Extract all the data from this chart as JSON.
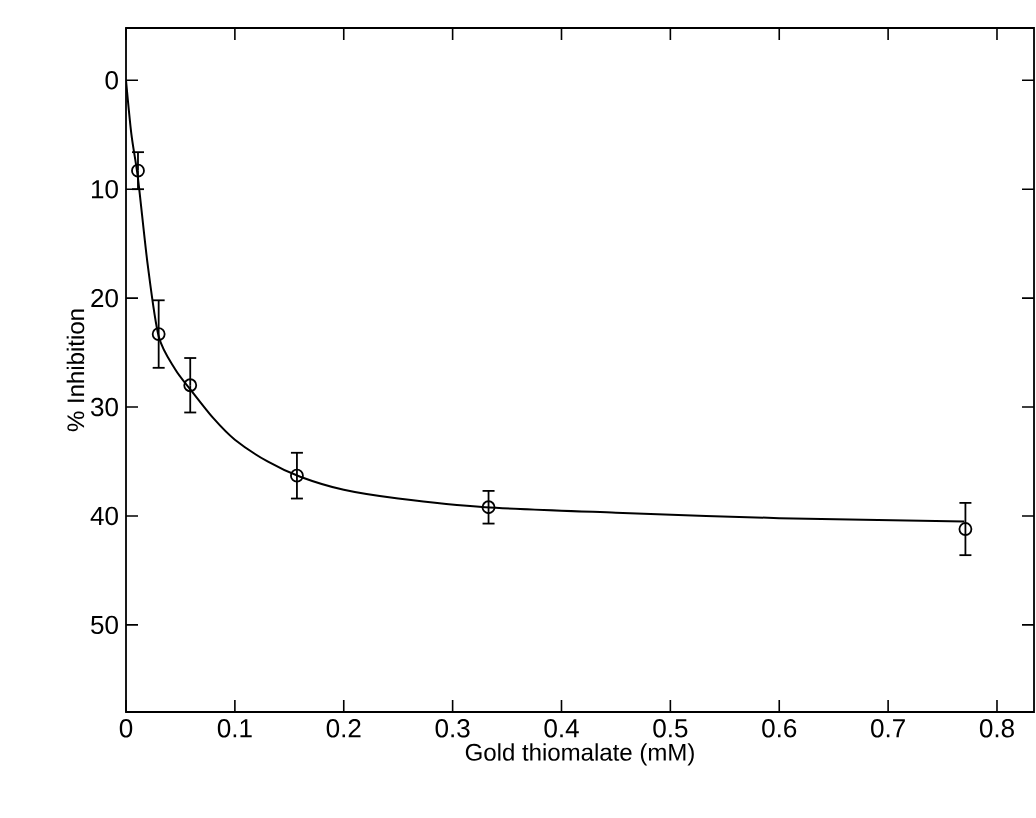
{
  "chart_data": {
    "type": "scatter",
    "xlabel": "Gold thiomalate (mM)",
    "ylabel": "% Inhibition",
    "xlim": [
      0,
      0.834
    ],
    "ylim": [
      58,
      -4.8
    ],
    "xticks": [
      0,
      0.1,
      0.2,
      0.3,
      0.4,
      0.5,
      0.6,
      0.7,
      0.8
    ],
    "yticks": [
      0,
      10,
      20,
      30,
      40,
      50
    ],
    "grid": false,
    "series": [
      {
        "type": "line",
        "color": "#000000",
        "marker": "none",
        "line_style": "solid",
        "x": [
          0,
          0.005,
          0.011,
          0.02,
          0.03,
          0.045,
          0.06,
          0.08,
          0.1,
          0.13,
          0.16,
          0.2,
          0.25,
          0.33,
          0.45,
          0.6,
          0.77
        ],
        "values": [
          0,
          5,
          9,
          17,
          23.5,
          26.5,
          28.5,
          31,
          33,
          35,
          36.4,
          37.6,
          38.4,
          39.2,
          39.7,
          40.2,
          40.5
        ]
      },
      {
        "color": "#000000",
        "marker": "circle",
        "x": [
          0.011,
          0.03,
          0.059,
          0.157,
          0.333,
          0.771
        ],
        "values": [
          8.3,
          23.3,
          28,
          36.3,
          39.2,
          41.2
        ],
        "errors": [
          1.7,
          3.1,
          2.5,
          2.1,
          1.5,
          2.4
        ]
      }
    ]
  }
}
